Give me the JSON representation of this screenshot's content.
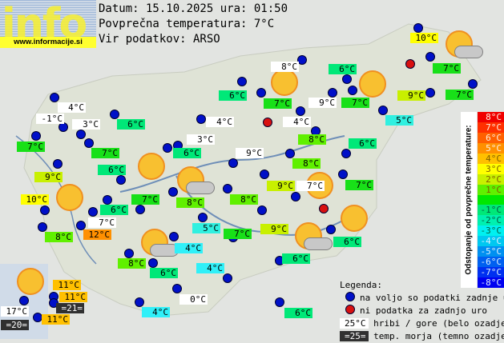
{
  "logo": {
    "text": "info",
    "url": "www.informacije.si"
  },
  "header": {
    "date_line": "Datum: 15.10.2025 ura: 01:50",
    "avg_line": "Povprečna temperatura: 7°C",
    "source_line": "Vir podatkov: ARSO"
  },
  "colors": {
    "station_available": "#0010c8",
    "station_missing": "#d81010"
  },
  "stations": [
    {
      "text": "4°C",
      "bg": "#ffffff"
    },
    {
      "text": "-1°C",
      "bg": "#ffffff"
    },
    {
      "text": "3°C",
      "bg": "#ffffff"
    },
    {
      "text": "6°C",
      "bg": "#00e878"
    },
    {
      "text": "7°C",
      "bg": "#18e018"
    },
    {
      "text": "7°C",
      "bg": "#18e018"
    },
    {
      "text": "6°C",
      "bg": "#00e878"
    },
    {
      "text": "9°C",
      "bg": "#c8f000"
    },
    {
      "text": "10°C",
      "bg": "#ffff00"
    },
    {
      "text": "7°C",
      "bg": "#18e018"
    },
    {
      "text": "6°C",
      "bg": "#00e878"
    },
    {
      "text": "7°C",
      "bg": "#ffffff"
    },
    {
      "text": "8°C",
      "bg": "#60f000"
    },
    {
      "text": "12°C",
      "bg": "#ff9000"
    },
    {
      "text": "8°C",
      "bg": "#ffffff"
    },
    {
      "text": "6°C",
      "bg": "#00e878"
    },
    {
      "text": "7°C",
      "bg": "#18e018"
    },
    {
      "text": "9°C",
      "bg": "#ffffff"
    },
    {
      "text": "4°C",
      "bg": "#ffffff"
    },
    {
      "text": "4°C",
      "bg": "#ffffff"
    },
    {
      "text": "8°C",
      "bg": "#60f000"
    },
    {
      "text": "3°C",
      "bg": "#ffffff"
    },
    {
      "text": "6°C",
      "bg": "#00e878"
    },
    {
      "text": "9°C",
      "bg": "#ffffff"
    },
    {
      "text": "8°C",
      "bg": "#60f000"
    },
    {
      "text": "9°C",
      "bg": "#c8f000"
    },
    {
      "text": "7°C",
      "bg": "#ffffff"
    },
    {
      "text": "8°C",
      "bg": "#60f000"
    },
    {
      "text": "8°C",
      "bg": "#60f000"
    },
    {
      "text": "10°C",
      "bg": "#ffff00"
    },
    {
      "text": "6°C",
      "bg": "#00e878"
    },
    {
      "text": "7°C",
      "bg": "#18e018"
    },
    {
      "text": "7°C",
      "bg": "#18e018"
    },
    {
      "text": "9°C",
      "bg": "#c8f000"
    },
    {
      "text": "7°C",
      "bg": "#18e018"
    },
    {
      "text": "5°C",
      "bg": "#30f0e0"
    },
    {
      "text": "6°C",
      "bg": "#00e878"
    },
    {
      "text": "7°C",
      "bg": "#18e018"
    },
    {
      "text": "5°C",
      "bg": "#30f0e0"
    },
    {
      "text": "7°C",
      "bg": "#18e018"
    },
    {
      "text": "9°C",
      "bg": "#c8f000"
    },
    {
      "text": "6°C",
      "bg": "#00e878"
    },
    {
      "text": "4°C",
      "bg": "#30f0f8"
    },
    {
      "text": "8°C",
      "bg": "#60f000"
    },
    {
      "text": "6°C",
      "bg": "#00e878"
    },
    {
      "text": "4°C",
      "bg": "#30f0f8"
    },
    {
      "text": "6°C",
      "bg": "#00e878"
    },
    {
      "text": "0°C",
      "bg": "#ffffff"
    },
    {
      "text": "4°C",
      "bg": "#30f0f8"
    },
    {
      "text": "6°C",
      "bg": "#00e878"
    },
    {
      "text": "11°C",
      "bg": "#ffc000"
    },
    {
      "text": "11°C",
      "bg": "#ffc000"
    },
    {
      "text": "=21=",
      "bg": "#303030"
    },
    {
      "text": "17°C",
      "bg": "#ffffff"
    },
    {
      "text": "=20=",
      "bg": "#303030"
    },
    {
      "text": "11°C",
      "bg": "#ffc000"
    }
  ],
  "scale": {
    "title": "Odstopanje od povprečne temperature:",
    "steps": [
      {
        "label": "8°C",
        "color": "#f00000"
      },
      {
        "label": "7°C",
        "color": "#ff3000"
      },
      {
        "label": "6°C",
        "color": "#ff6000"
      },
      {
        "label": "5°C",
        "color": "#ff9000"
      },
      {
        "label": "4°C",
        "color": "#ffc000"
      },
      {
        "label": "3°C",
        "color": "#ffff00"
      },
      {
        "label": "2°C",
        "color": "#c8f000"
      },
      {
        "label": "1°C",
        "color": "#60f000"
      },
      {
        "label": "",
        "color": "#00e800"
      },
      {
        "label": "-1°C",
        "color": "#00e878"
      },
      {
        "label": "-2°C",
        "color": "#00f0b0"
      },
      {
        "label": "-3°C",
        "color": "#00f0f0"
      },
      {
        "label": "-4°C",
        "color": "#00c8f0"
      },
      {
        "label": "-5°C",
        "color": "#0090f0"
      },
      {
        "label": "-6°C",
        "color": "#0060f0"
      },
      {
        "label": "-7°C",
        "color": "#0030f0"
      },
      {
        "label": "-8°C",
        "color": "#0000f0"
      }
    ]
  },
  "legend": {
    "title": "Legenda:",
    "available": "na voljo so podatki zadnje ure",
    "missing": "ni podatka za zadnjo uro",
    "mountain_sample": "25°C",
    "mountain": "hribi / gore (belo ozadje)",
    "sea_sample": "=25=",
    "sea": "temp. morja (temno ozadje)"
  }
}
